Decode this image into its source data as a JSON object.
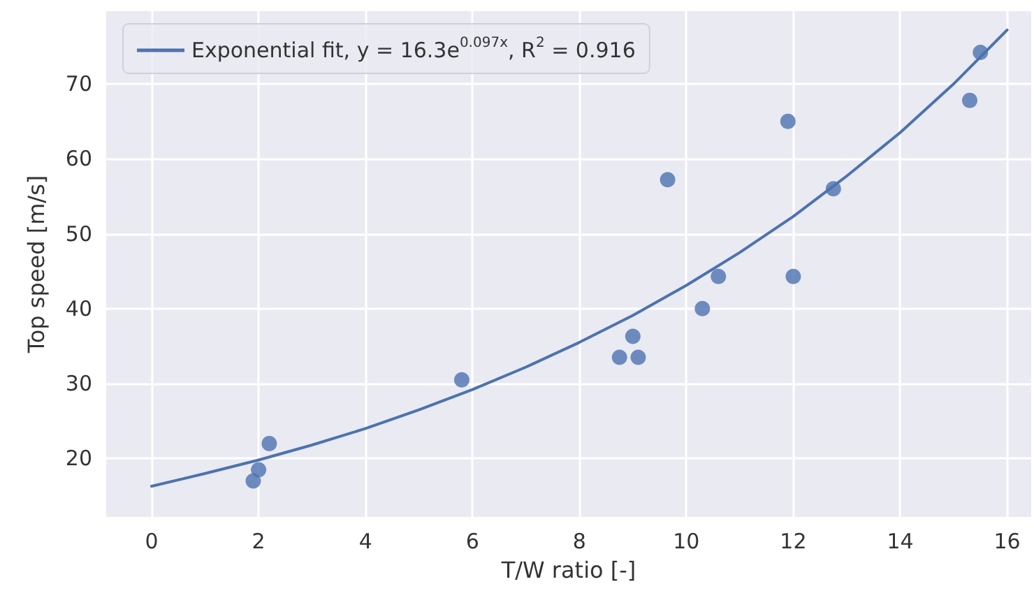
{
  "chart_data": {
    "type": "scatter",
    "xlabel": "T/W ratio [-]",
    "ylabel": "Top speed [m/s]",
    "xlim": [
      -0.85,
      16.45
    ],
    "ylim": [
      12.2,
      79.7
    ],
    "xticks": [
      0,
      2,
      4,
      6,
      8,
      10,
      12,
      14,
      16
    ],
    "yticks": [
      20,
      30,
      40,
      50,
      60,
      70
    ],
    "grid": true,
    "legend": "top left",
    "marker": "circle",
    "series": [
      {
        "color": "#4c72b0",
        "x": [
          1.9,
          2.0,
          2.2,
          5.8,
          8.75,
          9.1,
          9.0,
          9.65,
          10.3,
          10.6,
          11.9,
          12.0,
          12.75,
          15.3,
          15.5
        ],
        "values": [
          17,
          18.5,
          22,
          30.5,
          33.5,
          33.5,
          36.3,
          57.2,
          40,
          44.3,
          65,
          44.3,
          56,
          67.8,
          74.2
        ]
      },
      {
        "type": "line",
        "name": "Exponential fit, y = 16.3e$^{0.097x}$, R$^{2}$ = 0.916",
        "color": "#4c72b0",
        "line_style": "solid",
        "marker": "none",
        "x": [
          0,
          1,
          2,
          3,
          4,
          5,
          6,
          7,
          8,
          9,
          10,
          11,
          12,
          13,
          14,
          15,
          16
        ],
        "values": [
          16.3,
          18.0,
          19.8,
          21.8,
          24.0,
          26.5,
          29.2,
          32.2,
          35.5,
          39.1,
          43.1,
          47.5,
          52.3,
          57.7,
          63.5,
          70.0,
          77.2
        ]
      }
    ]
  }
}
